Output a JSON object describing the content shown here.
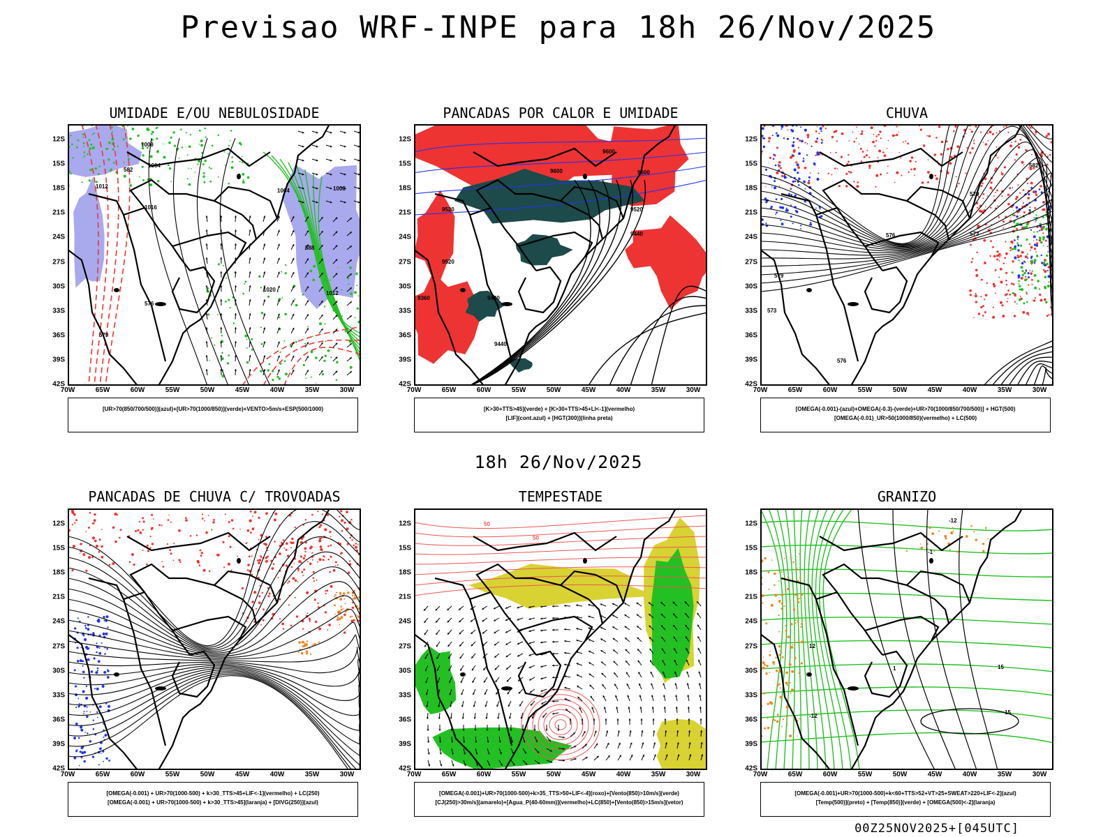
{
  "header": {
    "title": "Previsao WRF-INPE  para 18h 26/Nov/2025"
  },
  "mid_title": "18h 26/Nov/2025",
  "footer": {
    "run": "00Z25NOV2025+[045UTC]"
  },
  "axes": {
    "lat": [
      "12S",
      "15S",
      "18S",
      "21S",
      "24S",
      "27S",
      "30S",
      "33S",
      "36S",
      "39S",
      "42S"
    ],
    "lon": [
      "70W",
      "65W",
      "60W",
      "55W",
      "50W",
      "45W",
      "40W",
      "35W",
      "30W"
    ]
  },
  "colors": {
    "green": "#22c022",
    "red": "#ee3333",
    "blue": "#2233ee",
    "lavender": "#a9a9ee",
    "darkteal": "#1d4a4a",
    "yellow": "#d9d233",
    "orange": "#ee8822",
    "purple": "#aa22cc"
  },
  "panels": [
    {
      "id": "umidade",
      "title": "UMIDADE E/OU NEBULOSIDADE",
      "legend": [
        "[UR>70(850/700/500)](azul)+[UR>70(1000/850)](verde)+VENTO>5m/s+ESP(500/1000)"
      ],
      "labels": [
        "1008",
        "1004",
        "1012",
        "1016",
        "1020",
        "1004",
        "1008",
        "1012",
        "576",
        "579",
        "582",
        "588"
      ]
    },
    {
      "id": "pancadas-calor",
      "title": "PANCADAS POR CALOR E UMIDADE",
      "legend": [
        "[K>30+TTS>45](verde) + [K>30+TTS>45+LI<-1](vermelho)",
        "[LIF](cont.azul) + [HGT(300)](linha preta)"
      ],
      "labels": [
        "9600",
        "9600",
        "9600",
        "9520",
        "9520",
        "9440",
        "9520",
        "9440",
        "9360",
        "9440"
      ]
    },
    {
      "id": "chuva",
      "title": "CHUVA",
      "legend": [
        "[OMEGA(-0.001)-(azul)+OMEGA(-0.3)-(verde)+UR>70(1000/850/700/500)] + HGT(500)",
        "[OMEGA(-0.01)_UR>50(1000/850)(vermelho) + LC(500)"
      ],
      "labels": [
        "582",
        "579",
        "576",
        "573",
        "573",
        "576",
        "579"
      ]
    },
    {
      "id": "trovoadas",
      "title": "PANCADAS DE CHUVA C/ TROVOADAS",
      "legend": [
        "[OMEGA(-0.001) + UR>70(1000-500) + k>30_TTS>45+LIF<-1](vermelho) + LC(250)",
        "[OMEGA(-0.001) + UR>70(1000-500) + k>30_TTS>45](laranja) + [DIVG(250)](azul)"
      ],
      "labels": []
    },
    {
      "id": "tempestade",
      "title": "TEMPESTADE",
      "legend": [
        "[OMEGA(-0.001)+UR>70(1000-500)+k>35_TTS>50+LIF<-4](roxo)+[Vento(850)>10m/s](verde)",
        "[CJ(250)>30m/s](amarelo)+[Agua_P(40-60mm)](vermelho)+LC(850)+[Vento(850)>15m/s](vetor)"
      ],
      "labels": [
        "50",
        "50"
      ]
    },
    {
      "id": "granizo",
      "title": "GRANIZO",
      "legend": [
        "[OMEGA(-0.001)+UR>70(1000-500)+k<60+TTS>52+VT>25+SWEAT>220+LIF<-2](azul)",
        "[Temp(500)](preto) + [Temp(850)](verde) + [OMEGA(500)<-2](laranja)"
      ],
      "labels": [
        "-12",
        "-1",
        "15",
        "12",
        "1",
        "-12",
        "15"
      ]
    }
  ]
}
